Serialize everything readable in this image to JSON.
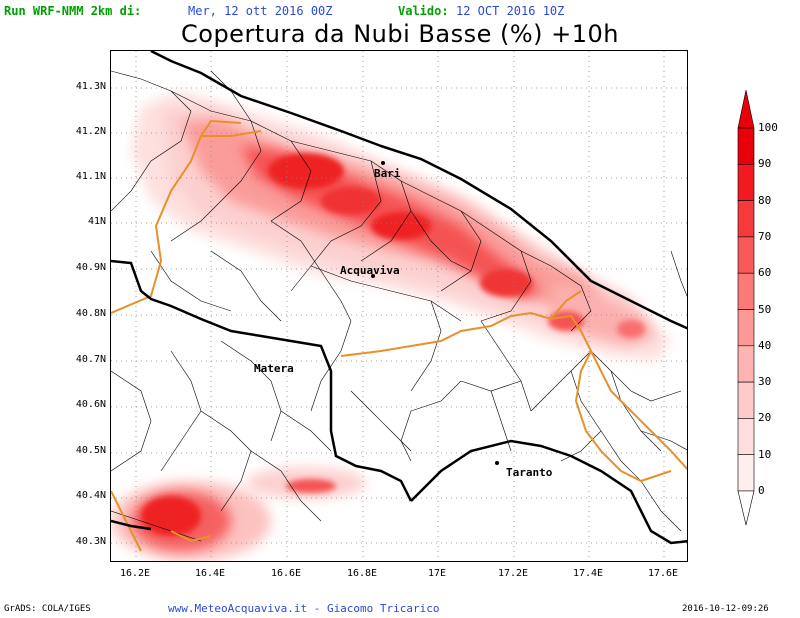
{
  "header": {
    "run_label": "Run WRF-NMM 2km di:",
    "run_date": "Mer, 12 ott 2016 00Z",
    "valid_label": "Valido:",
    "valid_date": "12 OCT 2016 10Z"
  },
  "title": "Copertura da Nubi Basse (%) +10h",
  "map": {
    "lat_ticks": [
      "41.3N",
      "41.2N",
      "41.1N",
      "41N",
      "40.9N",
      "40.8N",
      "40.7N",
      "40.6N",
      "40.5N",
      "40.4N",
      "40.3N"
    ],
    "lon_ticks": [
      "16.2E",
      "16.4E",
      "16.6E",
      "16.8E",
      "17E",
      "17.2E",
      "17.4E",
      "17.6E"
    ],
    "cities": {
      "bari": "Bari",
      "acquaviva": "Acquaviva",
      "matera": "Matera",
      "taranto": "Taranto"
    }
  },
  "colorbar": {
    "labels": [
      "100",
      "90",
      "80",
      "70",
      "60",
      "50",
      "40",
      "30",
      "20",
      "10",
      "0"
    ],
    "colors": [
      "#e8000a",
      "#f21a1e",
      "#f63a3c",
      "#f85a5a",
      "#fa7a78",
      "#fc9896",
      "#fdb4b2",
      "#fecbca",
      "#ffdede",
      "#ffeeee",
      "#ffffff"
    ]
  },
  "footer": {
    "left": "GrADS: COLA/IGES",
    "center": "www.MeteoAcquaviva.it - Giacomo Tricarico",
    "right": "2016-10-12-09:26"
  }
}
